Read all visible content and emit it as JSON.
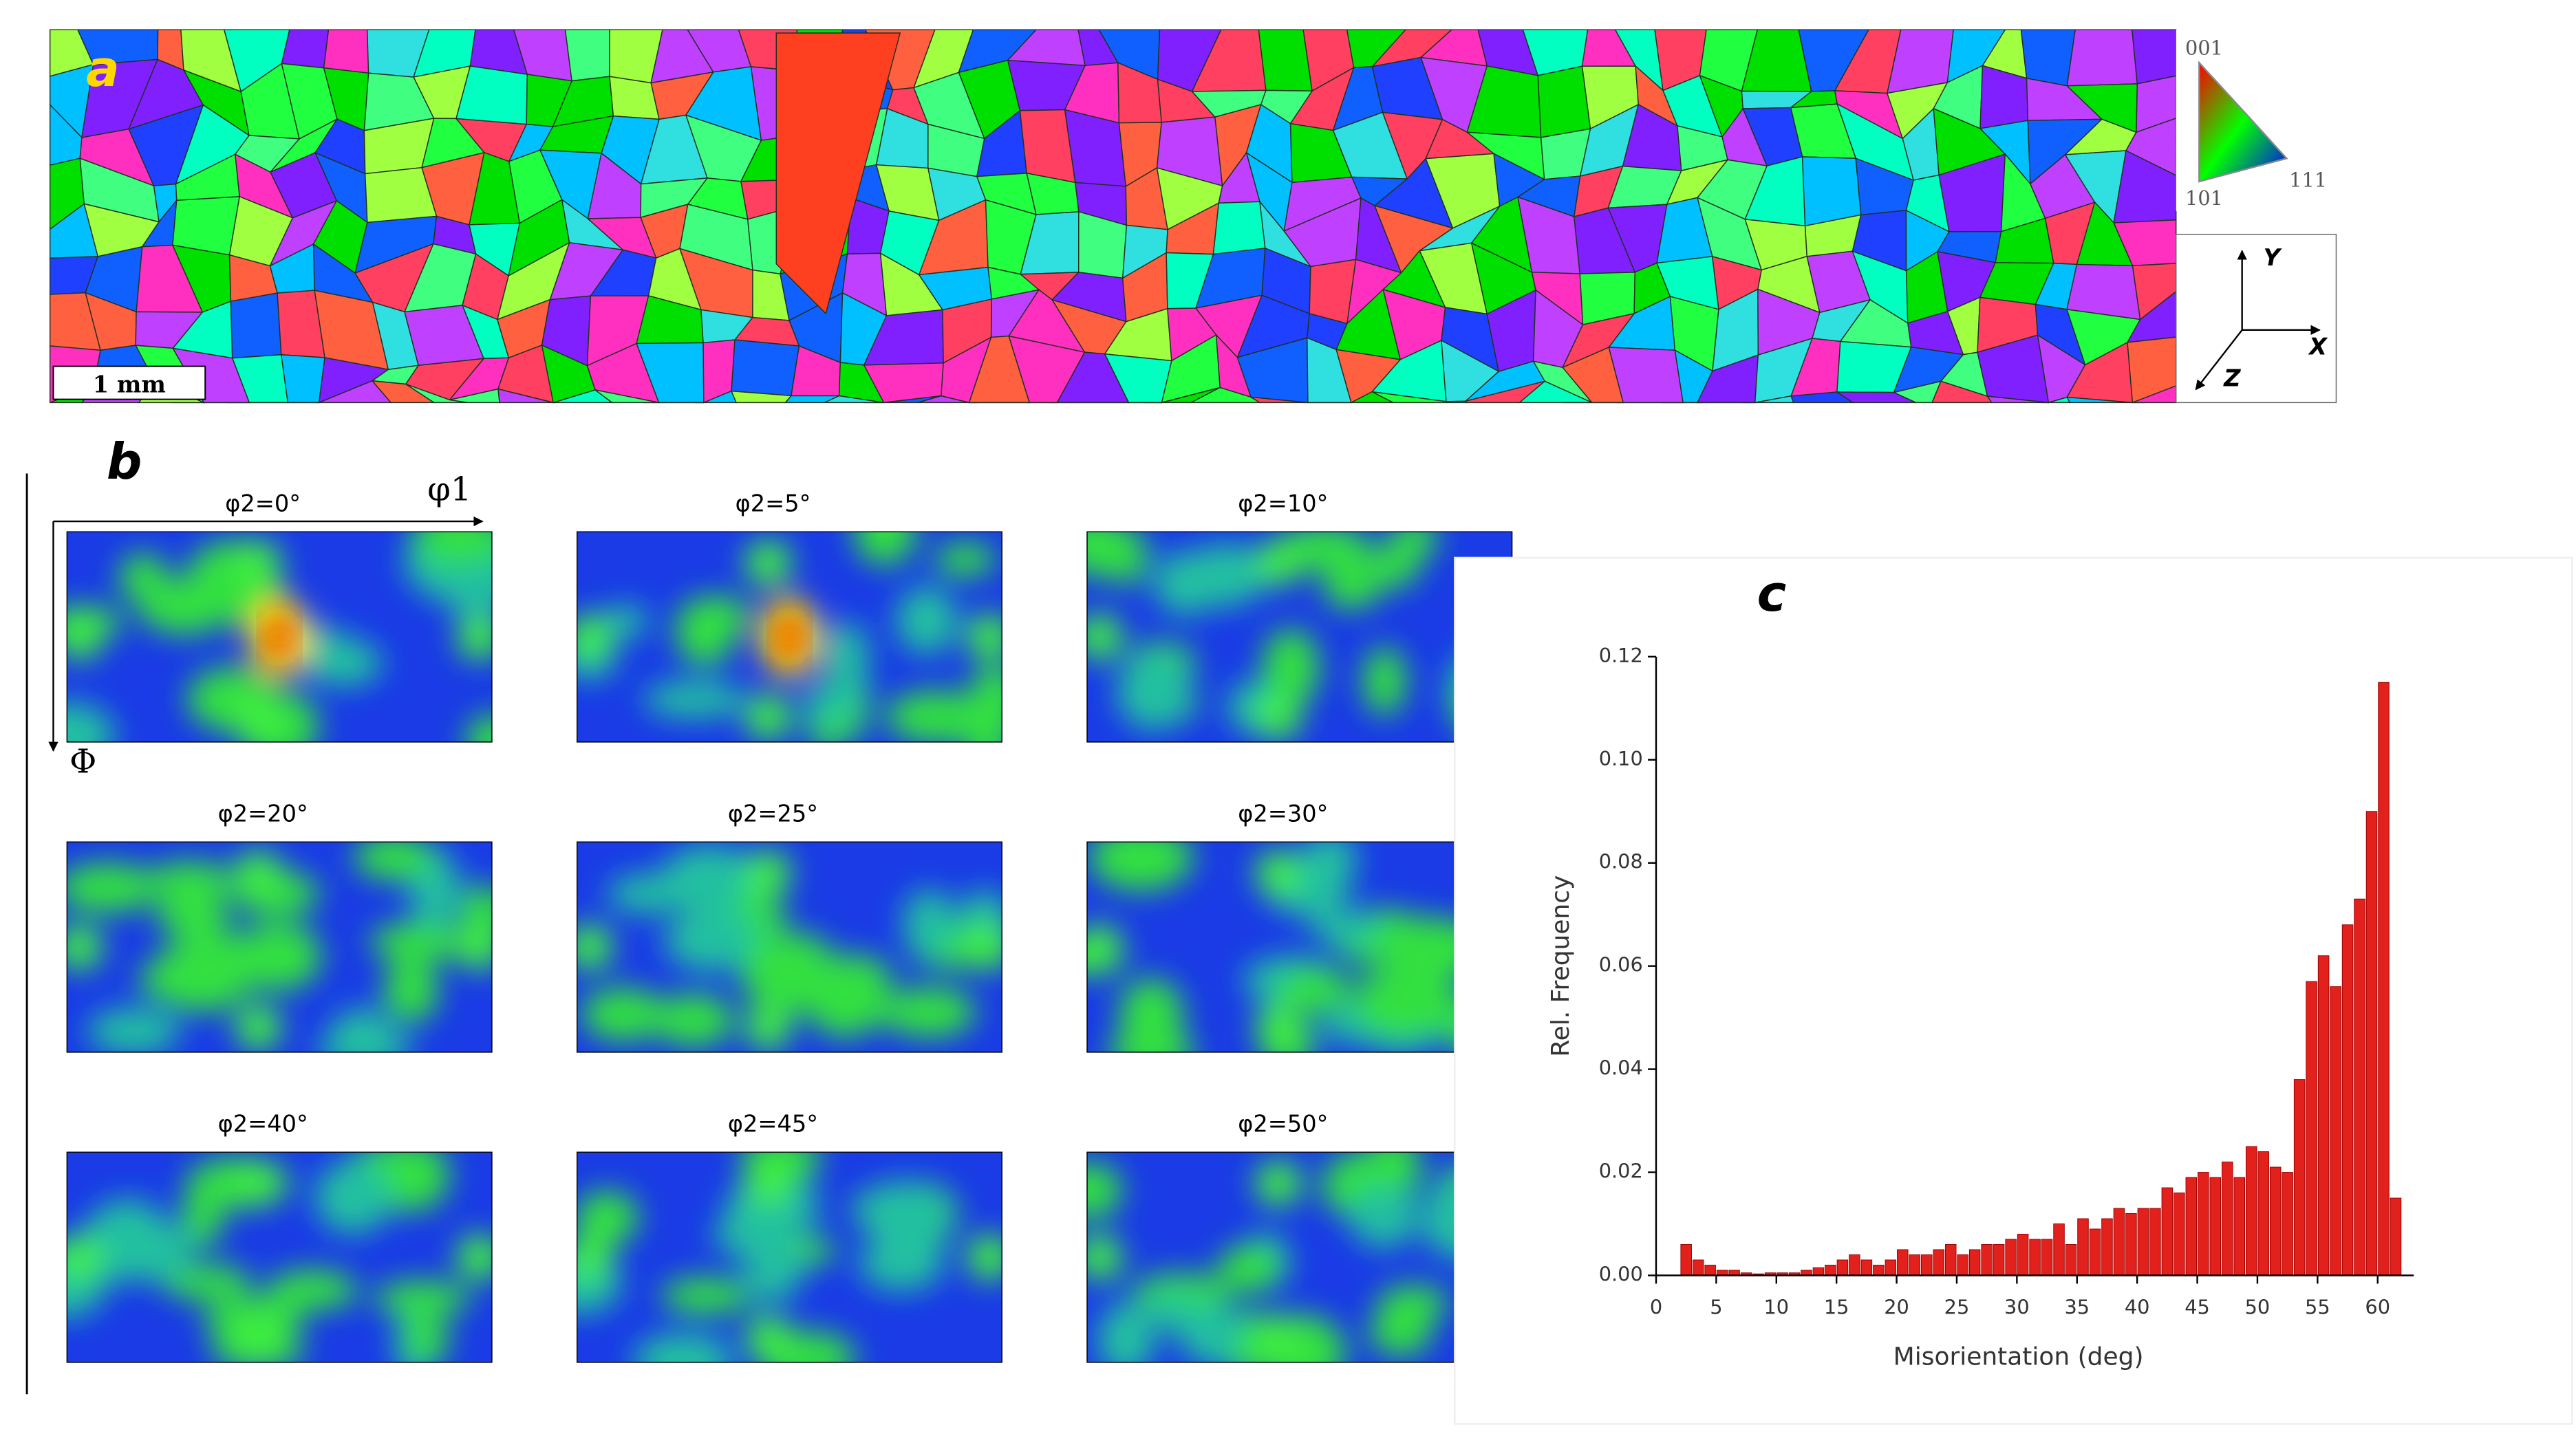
{
  "panel_labels": [
    "a",
    "b",
    "c"
  ],
  "map": {
    "scale_bar": "1 mm",
    "ipf": [
      "001",
      "101",
      "111"
    ],
    "axes": [
      "Y",
      "X",
      "Z"
    ]
  },
  "odf": {
    "phi1": "φ1",
    "Phi": "Φ",
    "sections": [
      "φ2=0°",
      "φ2=5°",
      "φ2=10°",
      "φ2=20°",
      "φ2=25°",
      "φ2=30°",
      "φ2=40°",
      "φ2=45°",
      "φ2=50°"
    ]
  },
  "chart_data": {
    "type": "histogram",
    "xlabel": "Misorientation (deg)",
    "ylabel": "Rel. Frequency",
    "color": "#e3211c",
    "bins": [
      2,
      3,
      4,
      5,
      6,
      7,
      8,
      9,
      10,
      11,
      12,
      13,
      14,
      15,
      16,
      17,
      18,
      19,
      20,
      21,
      22,
      23,
      24,
      25,
      26,
      27,
      28,
      29,
      30,
      31,
      32,
      33,
      34,
      35,
      36,
      37,
      38,
      39,
      40,
      41,
      42,
      43,
      44,
      45,
      46,
      47,
      48,
      49,
      50,
      51,
      52,
      53,
      54,
      55,
      56,
      57,
      58,
      59,
      60,
      61,
      62
    ],
    "values": [
      0.006,
      0.003,
      0.002,
      0.001,
      0.001,
      0.0005,
      0.0003,
      0.0005,
      0.0005,
      0.0005,
      0.001,
      0.0015,
      0.002,
      0.003,
      0.004,
      0.003,
      0.002,
      0.003,
      0.005,
      0.004,
      0.004,
      0.005,
      0.006,
      0.004,
      0.005,
      0.006,
      0.006,
      0.007,
      0.008,
      0.007,
      0.007,
      0.01,
      0.006,
      0.011,
      0.009,
      0.011,
      0.013,
      0.012,
      0.013,
      0.013,
      0.017,
      0.016,
      0.019,
      0.02,
      0.019,
      0.022,
      0.019,
      0.025,
      0.024,
      0.021,
      0.02,
      0.038,
      0.057,
      0.062,
      0.056,
      0.068,
      0.073,
      0.09,
      0.115,
      0.015
    ],
    "xlim": [
      0,
      63
    ],
    "xticks": [
      0,
      5,
      10,
      15,
      20,
      25,
      30,
      35,
      40,
      45,
      50,
      55,
      60
    ],
    "ylim": [
      0,
      0.12
    ],
    "yticks": [
      {
        "value": 0,
        "label": "0.00"
      },
      {
        "value": 0.02,
        "label": "0.02"
      },
      {
        "value": 0.04,
        "label": "0.04"
      },
      {
        "value": 0.06,
        "label": "0.06"
      },
      {
        "value": 0.08,
        "label": "0.08"
      },
      {
        "value": 0.1,
        "label": "0.10"
      },
      {
        "value": 0.12,
        "label": "0.12"
      }
    ]
  }
}
